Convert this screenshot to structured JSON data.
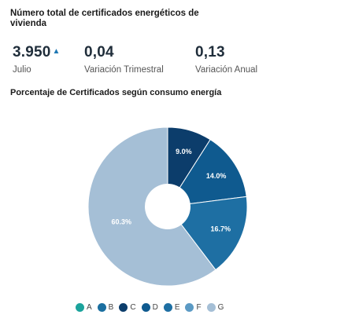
{
  "header": {
    "title": "Número total de certificados energéticos de vivienda"
  },
  "kpis": [
    {
      "value": "3.950",
      "arrow": "up",
      "label": "Julio"
    },
    {
      "value": "0,04",
      "label": "Variación Trimestral"
    },
    {
      "value": "0,13",
      "label": "Variación Anual"
    }
  ],
  "chart_data": {
    "type": "pie",
    "title": "Porcentaje de Certificados según consumo energía",
    "categories": [
      "A",
      "B",
      "C",
      "D",
      "E",
      "F",
      "G"
    ],
    "values": [
      0,
      0,
      9.0,
      14.0,
      16.7,
      0,
      60.3
    ],
    "data_labels": [
      "",
      "",
      "9.0%",
      "14.0%",
      "16.7%",
      "",
      "60.3%"
    ],
    "colors": [
      "#1ba39c",
      "#1a6fa0",
      "#0c3d6b",
      "#0f5a8f",
      "#1e6fa3",
      "#5b9ac4",
      "#a5bfd6"
    ],
    "donut": true,
    "legend_position": "bottom"
  }
}
